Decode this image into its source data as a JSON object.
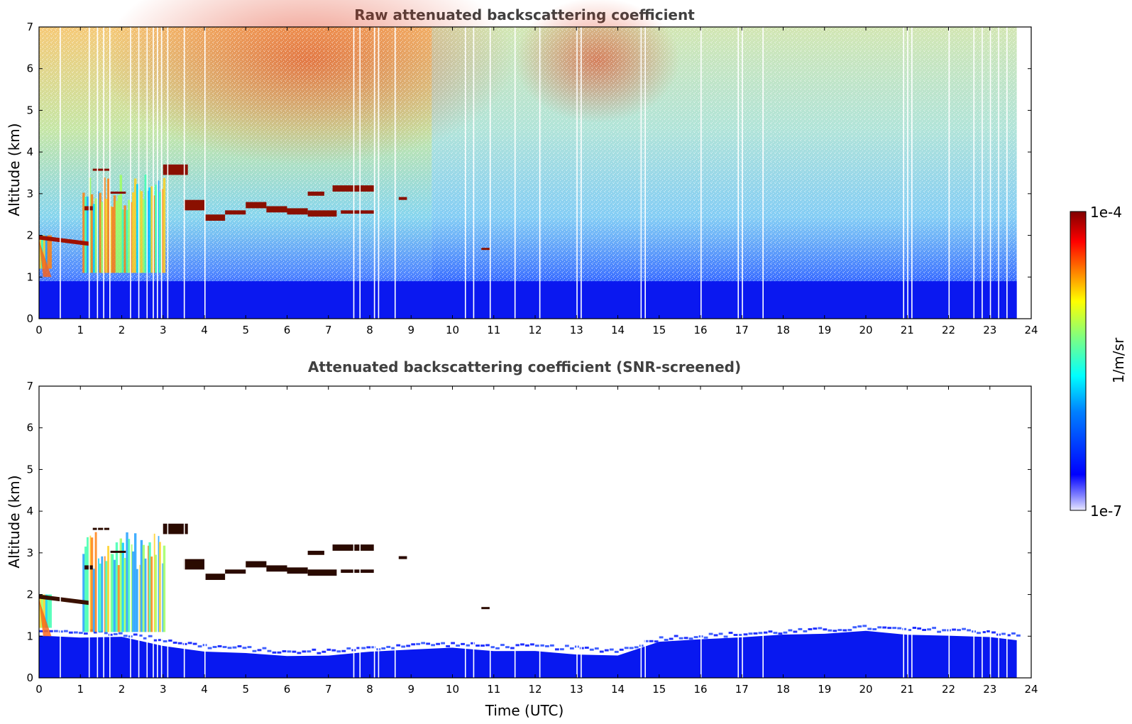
{
  "chart_data": [
    {
      "type": "heatmap",
      "title": "Raw attenuated backscattering coefficient",
      "xlabel": "",
      "ylabel": "Altitude (km)",
      "xlim": [
        0,
        24
      ],
      "ylim": [
        0,
        7
      ],
      "xticks": [
        "0",
        "1",
        "2",
        "3",
        "4",
        "5",
        "6",
        "7",
        "8",
        "9",
        "10",
        "11",
        "12",
        "13",
        "14",
        "15",
        "16",
        "17",
        "18",
        "19",
        "20",
        "21",
        "22",
        "23",
        "24"
      ],
      "yticks": [
        "0",
        "1",
        "2",
        "3",
        "4",
        "5",
        "6",
        "7"
      ],
      "data_end_time": 23.65,
      "colormap": "jet",
      "log_scale": true,
      "features": [
        {
          "name": "boundary layer",
          "altitude_km": [
            0,
            1.2
          ],
          "time_utc": [
            0,
            23.65
          ],
          "level": "low"
        },
        {
          "name": "cloud layer",
          "altitude_km": [
            1.8,
            2.0
          ],
          "time_utc": [
            0,
            1.2
          ],
          "level": "high"
        },
        {
          "name": "cloud layer",
          "altitude_km": [
            2.4,
            2.9
          ],
          "time_utc": [
            3.5,
            8.1
          ],
          "level": "high"
        },
        {
          "name": "cloud layer",
          "altitude_km": [
            3.4,
            3.8
          ],
          "time_utc": [
            3.0,
            3.6
          ],
          "level": "high"
        },
        {
          "name": "aerosol plume",
          "altitude_km": [
            1.5,
            3.5
          ],
          "time_utc": [
            1.0,
            3.0
          ],
          "level": "medium"
        },
        {
          "name": "noisy upper region",
          "altitude_km": [
            4.0,
            7.0
          ],
          "time_utc": [
            3.0,
            14.5
          ],
          "level": "medium-high"
        }
      ]
    },
    {
      "type": "heatmap",
      "title": "Attenuated backscattering coefficient (SNR-screened)",
      "xlabel": "Time (UTC)",
      "ylabel": "Altitude (km)",
      "xlim": [
        0,
        24
      ],
      "ylim": [
        0,
        7
      ],
      "xticks": [
        "0",
        "1",
        "2",
        "3",
        "4",
        "5",
        "6",
        "7",
        "8",
        "9",
        "10",
        "11",
        "12",
        "13",
        "14",
        "15",
        "16",
        "17",
        "18",
        "19",
        "20",
        "21",
        "22",
        "23",
        "24"
      ],
      "yticks": [
        "0",
        "1",
        "2",
        "3",
        "4",
        "5",
        "6",
        "7"
      ],
      "data_end_time": 23.65,
      "colormap": "jet",
      "log_scale": true,
      "boundary_layer_top_km": [
        [
          0,
          1.0
        ],
        [
          1,
          1.0
        ],
        [
          2,
          0.95
        ],
        [
          3,
          0.8
        ],
        [
          4,
          0.65
        ],
        [
          5,
          0.6
        ],
        [
          6,
          0.5
        ],
        [
          7,
          0.55
        ],
        [
          8,
          0.6
        ],
        [
          9,
          0.7
        ],
        [
          10,
          0.7
        ],
        [
          11,
          0.65
        ],
        [
          12,
          0.65
        ],
        [
          13,
          0.6
        ],
        [
          14,
          0.55
        ],
        [
          15,
          0.85
        ],
        [
          16,
          0.9
        ],
        [
          17,
          0.95
        ],
        [
          18,
          1.0
        ],
        [
          19,
          1.05
        ],
        [
          20,
          1.1
        ],
        [
          21,
          1.05
        ],
        [
          22,
          1.05
        ],
        [
          23,
          1.0
        ],
        [
          23.65,
          0.9
        ]
      ]
    }
  ],
  "colorbar": {
    "max_label": "1e-4",
    "min_label": "1e-7",
    "unit_label": "1/m/sr",
    "stops": [
      "#e8e8ff",
      "#0000ff",
      "#00a0ff",
      "#00ffff",
      "#80ff80",
      "#ffff00",
      "#ff8000",
      "#ff0000",
      "#800000"
    ]
  }
}
